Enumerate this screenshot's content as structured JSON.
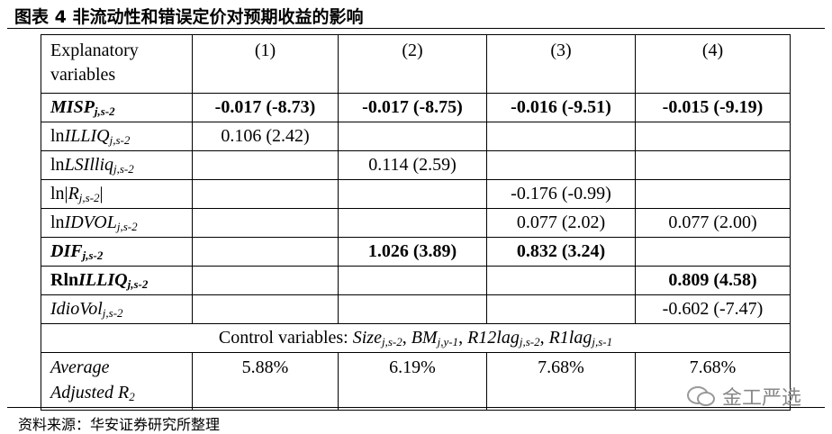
{
  "title": "图表 4 非流动性和错误定价对预期收益的影响",
  "table": {
    "header": {
      "label": [
        [
          {
            "text": "Explanatory"
          }
        ],
        [
          {
            "text": "variables"
          }
        ]
      ],
      "columns": [
        "(1)",
        "(2)",
        "(3)",
        "(4)"
      ]
    },
    "rows": [
      {
        "bold": true,
        "label": [
          [
            {
              "text": "MISP",
              "italic": true
            },
            {
              "text": "j,s-2",
              "italic": true,
              "sub": true
            }
          ]
        ],
        "cells": [
          "-0.017 (-8.73)",
          "-0.017 (-8.75)",
          "-0.016 (-9.51)",
          "-0.015 (-9.19)"
        ]
      },
      {
        "label": [
          [
            {
              "text": "ln"
            },
            {
              "text": "ILLIQ",
              "italic": true
            },
            {
              "text": "j,s-2",
              "italic": true,
              "sub": true
            }
          ]
        ],
        "cells": [
          "0.106 (2.42)",
          null,
          null,
          null
        ]
      },
      {
        "label": [
          [
            {
              "text": "ln"
            },
            {
              "text": "LSIlliq",
              "italic": true
            },
            {
              "text": "j,s-2",
              "italic": true,
              "sub": true
            }
          ]
        ],
        "cells": [
          null,
          "0.114 (2.59)",
          null,
          null
        ]
      },
      {
        "label": [
          [
            {
              "text": "ln|"
            },
            {
              "text": "R",
              "italic": true
            },
            {
              "text": "j,s-2",
              "italic": true,
              "sub": true
            },
            {
              "text": "|"
            }
          ]
        ],
        "cells": [
          null,
          null,
          "-0.176 (-0.99)",
          null
        ]
      },
      {
        "label": [
          [
            {
              "text": "ln"
            },
            {
              "text": "IDVOL",
              "italic": true
            },
            {
              "text": "j,s-2",
              "italic": true,
              "sub": true
            }
          ]
        ],
        "cells": [
          null,
          null,
          "0.077 (2.02)",
          "0.077 (2.00)"
        ]
      },
      {
        "bold": true,
        "label": [
          [
            {
              "text": "DIF",
              "italic": true
            },
            {
              "text": "j,s-2",
              "italic": true,
              "sub": true
            }
          ]
        ],
        "cells": [
          null,
          "1.026 (3.89)",
          "0.832 (3.24)",
          null
        ]
      },
      {
        "bold": true,
        "label": [
          [
            {
              "text": "Rln"
            },
            {
              "text": "ILLIQ",
              "italic": true
            },
            {
              "text": "j,s-2",
              "italic": true,
              "sub": true
            }
          ]
        ],
        "cells": [
          null,
          null,
          null,
          "0.809 (4.58)"
        ]
      },
      {
        "label": [
          [
            {
              "text": "IdioVol",
              "italic": true
            },
            {
              "text": "j,s-2",
              "italic": true,
              "sub": true
            }
          ]
        ],
        "cells": [
          null,
          null,
          null,
          "-0.602 (-7.47)"
        ]
      }
    ],
    "controls": [
      {
        "text": "Control variables: "
      },
      {
        "text": "Size",
        "italic": true
      },
      {
        "text": "j,s-2",
        "italic": true,
        "sub": true
      },
      {
        "text": ", "
      },
      {
        "text": "BM",
        "italic": true
      },
      {
        "text": "j,y-1",
        "italic": true,
        "sub": true
      },
      {
        "text": ", "
      },
      {
        "text": "R12lag",
        "italic": true
      },
      {
        "text": "j,s-2",
        "italic": true,
        "sub": true
      },
      {
        "text": ", "
      },
      {
        "text": "R1lag",
        "italic": true
      },
      {
        "text": "j,s-1",
        "italic": true,
        "sub": true
      }
    ],
    "footer_row": {
      "label": [
        [
          {
            "text": "Average",
            "italic": true
          }
        ],
        [
          {
            "text": "Adjusted R",
            "italic": true
          },
          {
            "text": "2",
            "italic": true,
            "sub": true
          }
        ]
      ],
      "cells": [
        "5.88%",
        "6.19%",
        "7.68%",
        "7.68%"
      ]
    }
  },
  "source": "资料来源：华安证券研究所整理",
  "watermark": "金工严选"
}
